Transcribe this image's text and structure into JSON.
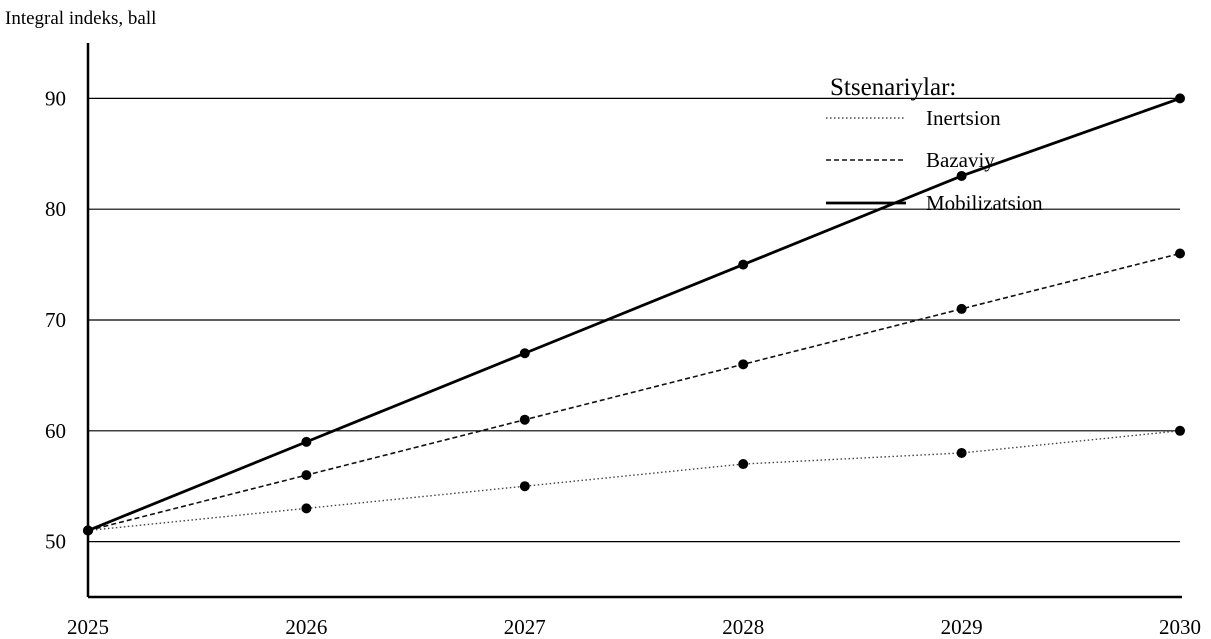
{
  "chart_data": {
    "type": "line",
    "title": "",
    "xlabel": "",
    "ylabel": "Integral indeks, ball",
    "x": [
      2025,
      2026,
      2027,
      2028,
      2029,
      2030
    ],
    "xlim": [
      2025,
      2030
    ],
    "ylim": [
      45,
      95
    ],
    "yticks": [
      50,
      60,
      70,
      80,
      90
    ],
    "grid": "horizontal",
    "legend": {
      "title": "Stsenariylar:",
      "placement": "top-right"
    },
    "series": [
      {
        "name": "Inertsion",
        "style": "dotted",
        "values": [
          51,
          53,
          55,
          57,
          58,
          60
        ]
      },
      {
        "name": "Bazaviy",
        "style": "dashed",
        "values": [
          51,
          56,
          61,
          66,
          71,
          76
        ]
      },
      {
        "name": "Mobilizatsion",
        "style": "solid",
        "values": [
          51,
          59,
          67,
          75,
          83,
          90
        ]
      }
    ]
  }
}
